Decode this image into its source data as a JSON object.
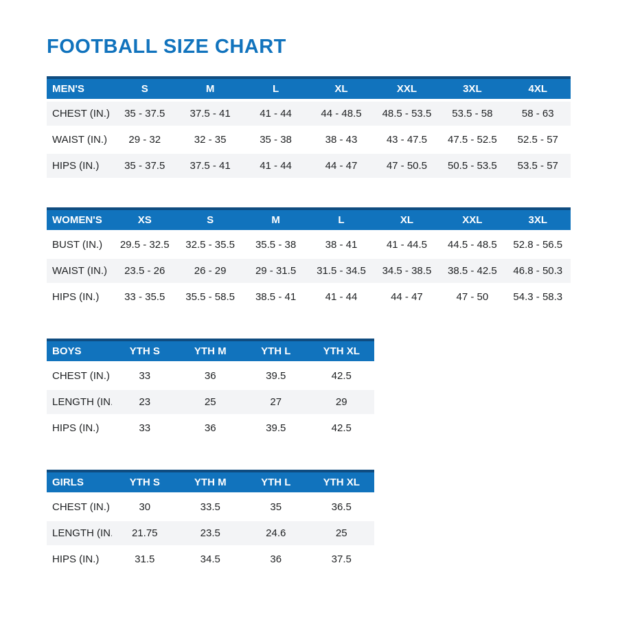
{
  "page": {
    "title": "FOOTBALL SIZE CHART"
  },
  "colors": {
    "header_bg": "#1173bd",
    "header_top_border": "#0f4c80",
    "header_text": "#ffffff",
    "shaded_row_bg": "#f3f4f6",
    "body_text": "#1e2022",
    "title_color": "#1173bd",
    "page_bg": "#ffffff"
  },
  "tables": [
    {
      "name": "mens",
      "group_label": "MEN'S",
      "sizes": [
        "S",
        "M",
        "L",
        "XL",
        "XXL",
        "3XL",
        "4XL"
      ],
      "rows": [
        {
          "label": "CHEST (IN.)",
          "shaded": true,
          "values": [
            "35 - 37.5",
            "37.5 - 41",
            "41 - 44",
            "44 - 48.5",
            "48.5 - 53.5",
            "53.5 - 58",
            "58 - 63"
          ]
        },
        {
          "label": "WAIST (IN.)",
          "shaded": false,
          "values": [
            "29 - 32",
            "32 - 35",
            "35 - 38",
            "38 - 43",
            "43 - 47.5",
            "47.5 - 52.5",
            "52.5 - 57"
          ]
        },
        {
          "label": "HIPS (IN.)",
          "shaded": true,
          "values": [
            "35 - 37.5",
            "37.5 - 41",
            "41 - 44",
            "44 - 47",
            "47 - 50.5",
            "50.5 - 53.5",
            "53.5 - 57"
          ]
        }
      ]
    },
    {
      "name": "womens",
      "group_label": "WOMEN'S",
      "sizes": [
        "XS",
        "S",
        "M",
        "L",
        "XL",
        "XXL",
        "3XL"
      ],
      "rows": [
        {
          "label": "BUST (IN.)",
          "shaded": false,
          "values": [
            "29.5 - 32.5",
            "32.5 - 35.5",
            "35.5 - 38",
            "38 - 41",
            "41 - 44.5",
            "44.5 - 48.5",
            "52.8 - 56.5"
          ]
        },
        {
          "label": "WAIST (IN.)",
          "shaded": true,
          "values": [
            "23.5 - 26",
            "26 - 29",
            "29 - 31.5",
            "31.5 - 34.5",
            "34.5 - 38.5",
            "38.5 - 42.5",
            "46.8 - 50.3"
          ]
        },
        {
          "label": "HIPS (IN.)",
          "shaded": false,
          "values": [
            "33 - 35.5",
            "35.5 - 58.5",
            "38.5 - 41",
            "41 - 44",
            "44 - 47",
            "47 - 50",
            "54.3 - 58.3"
          ]
        }
      ]
    },
    {
      "name": "boys",
      "group_label": "BOYS",
      "sizes": [
        "YTH S",
        "YTH M",
        "YTH L",
        "YTH XL"
      ],
      "rows": [
        {
          "label": "CHEST (IN.)",
          "shaded": false,
          "values": [
            "33",
            "36",
            "39.5",
            "42.5"
          ]
        },
        {
          "label": "LENGTH (IN.)",
          "shaded": true,
          "values": [
            "23",
            "25",
            "27",
            "29"
          ]
        },
        {
          "label": "HIPS (IN.)",
          "shaded": false,
          "values": [
            "33",
            "36",
            "39.5",
            "42.5"
          ]
        }
      ]
    },
    {
      "name": "girls",
      "group_label": "GIRLS",
      "sizes": [
        "YTH S",
        "YTH M",
        "YTH L",
        "YTH XL"
      ],
      "rows": [
        {
          "label": "CHEST (IN.)",
          "shaded": false,
          "values": [
            "30",
            "33.5",
            "35",
            "36.5"
          ]
        },
        {
          "label": "LENGTH (IN.)",
          "shaded": true,
          "values": [
            "21.75",
            "23.5",
            "24.6",
            "25"
          ]
        },
        {
          "label": "HIPS (IN.)",
          "shaded": false,
          "values": [
            "31.5",
            "34.5",
            "36",
            "37.5"
          ]
        }
      ]
    }
  ]
}
